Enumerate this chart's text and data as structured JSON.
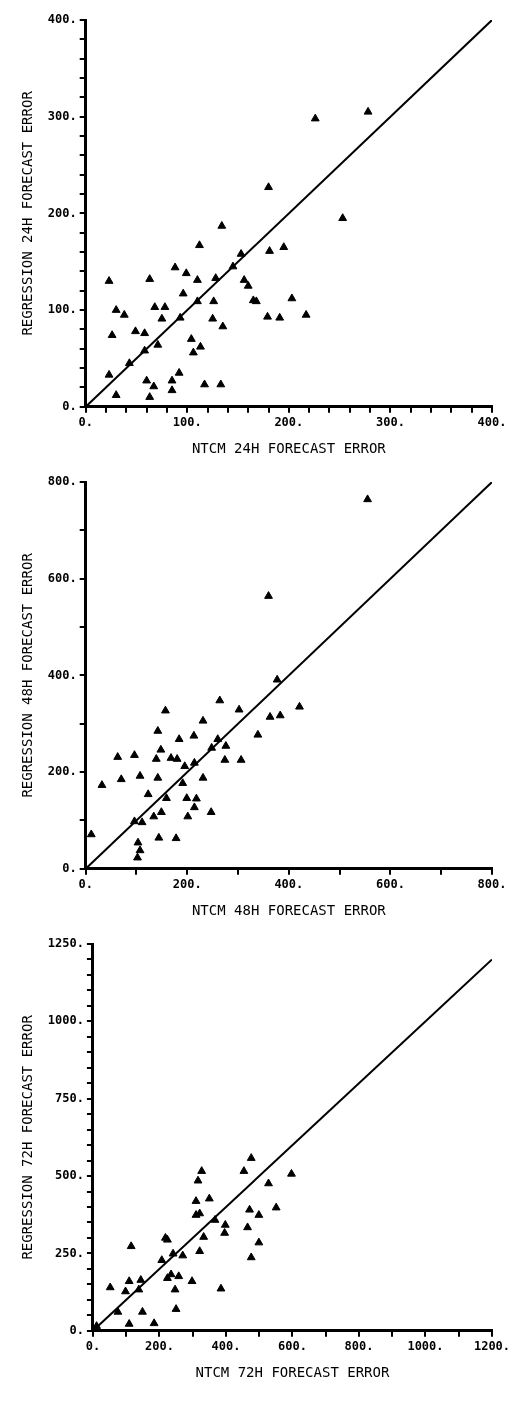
{
  "chart_data": [
    {
      "type": "scatter",
      "xlabel": "NTCM 24H FORECAST ERROR",
      "ylabel": "REGRESSION 24H FORECAST ERROR",
      "marker": "triangle",
      "xlim": [
        0,
        400
      ],
      "ylim": [
        0,
        400
      ],
      "xticks": [
        {
          "value": 0,
          "label": "0."
        },
        {
          "value": 20,
          "label": null
        },
        {
          "value": 40,
          "label": null
        },
        {
          "value": 60,
          "label": null
        },
        {
          "value": 80,
          "label": null
        },
        {
          "value": 100,
          "label": "100."
        },
        {
          "value": 120,
          "label": null
        },
        {
          "value": 140,
          "label": null
        },
        {
          "value": 160,
          "label": null
        },
        {
          "value": 180,
          "label": null
        },
        {
          "value": 200,
          "label": "200."
        },
        {
          "value": 220,
          "label": null
        },
        {
          "value": 240,
          "label": null
        },
        {
          "value": 260,
          "label": null
        },
        {
          "value": 280,
          "label": null
        },
        {
          "value": 300,
          "label": "300."
        },
        {
          "value": 320,
          "label": null
        },
        {
          "value": 340,
          "label": null
        },
        {
          "value": 360,
          "label": null
        },
        {
          "value": 380,
          "label": null
        },
        {
          "value": 400,
          "label": "400."
        }
      ],
      "yticks": [
        {
          "value": 0,
          "label": "0."
        },
        {
          "value": 20,
          "label": null
        },
        {
          "value": 40,
          "label": null
        },
        {
          "value": 60,
          "label": null
        },
        {
          "value": 80,
          "label": null
        },
        {
          "value": 100,
          "label": "100."
        },
        {
          "value": 120,
          "label": null
        },
        {
          "value": 140,
          "label": null
        },
        {
          "value": 160,
          "label": null
        },
        {
          "value": 180,
          "label": null
        },
        {
          "value": 200,
          "label": "200."
        },
        {
          "value": 220,
          "label": null
        },
        {
          "value": 240,
          "label": null
        },
        {
          "value": 260,
          "label": null
        },
        {
          "value": 280,
          "label": null
        },
        {
          "value": 300,
          "label": "300."
        },
        {
          "value": 320,
          "label": null
        },
        {
          "value": 340,
          "label": null
        },
        {
          "value": 360,
          "label": null
        },
        {
          "value": 380,
          "label": null
        },
        {
          "value": 400,
          "label": "400."
        }
      ],
      "series": [
        {
          "type": "scatter",
          "color": "#000000",
          "x": [
            23,
            63,
            88,
            99,
            110,
            112,
            134,
            128,
            145,
            153,
            156,
            160,
            165,
            168,
            181,
            180,
            195,
            203,
            179,
            191,
            217,
            253,
            226,
            278,
            30,
            38,
            26,
            49,
            58,
            68,
            78,
            75,
            93,
            96,
            110,
            126,
            125,
            135,
            71,
            58,
            43,
            104,
            113,
            106,
            23,
            30,
            60,
            67,
            63,
            85,
            85,
            92,
            117,
            133
          ],
          "values": [
            130,
            132,
            144,
            138,
            131,
            167,
            187,
            133,
            145,
            158,
            131,
            125,
            110,
            109,
            161,
            227,
            165,
            112,
            93,
            92,
            95,
            195,
            298,
            305,
            100,
            95,
            74,
            78,
            76,
            103,
            103,
            91,
            92,
            117,
            109,
            109,
            91,
            83,
            64,
            58,
            45,
            70,
            62,
            56,
            33,
            12,
            27,
            21,
            10,
            27,
            17,
            35,
            23,
            23
          ]
        },
        {
          "type": "line",
          "color": "#000000",
          "marker": "none",
          "x": [
            0,
            400
          ],
          "values": [
            0,
            400
          ]
        }
      ]
    },
    {
      "type": "scatter",
      "xlabel": "NTCM 48H FORECAST ERROR",
      "ylabel": "REGRESSION 48H FORECAST ERROR",
      "marker": "triangle",
      "xlim": [
        0,
        800
      ],
      "ylim": [
        0,
        800
      ],
      "xticks": [
        {
          "value": 0,
          "label": "0."
        },
        {
          "value": 100,
          "label": null
        },
        {
          "value": 200,
          "label": "200."
        },
        {
          "value": 300,
          "label": null
        },
        {
          "value": 400,
          "label": "400."
        },
        {
          "value": 500,
          "label": null
        },
        {
          "value": 600,
          "label": "600."
        },
        {
          "value": 700,
          "label": null
        },
        {
          "value": 800,
          "label": "800."
        }
      ],
      "yticks": [
        {
          "value": 0,
          "label": "0."
        },
        {
          "value": 100,
          "label": null
        },
        {
          "value": 200,
          "label": "200."
        },
        {
          "value": 300,
          "label": null
        },
        {
          "value": 400,
          "label": "400."
        },
        {
          "value": 500,
          "label": null
        },
        {
          "value": 600,
          "label": "600."
        },
        {
          "value": 700,
          "label": null
        },
        {
          "value": 800,
          "label": "800."
        }
      ],
      "series": [
        {
          "type": "scatter",
          "color": "#000000",
          "x": [
            555,
            360,
            377,
            11,
            32,
            63,
            96,
            70,
            107,
            142,
            123,
            157,
            142,
            148,
            139,
            168,
            180,
            184,
            195,
            213,
            214,
            231,
            231,
            264,
            260,
            248,
            276,
            274,
            302,
            306,
            339,
            363,
            383,
            421,
            191,
            159,
            199,
            218,
            214,
            201,
            247,
            149,
            134,
            96,
            111,
            144,
            178,
            103,
            107,
            102
          ],
          "values": [
            764,
            564,
            391,
            71,
            173,
            231,
            235,
            185,
            192,
            188,
            154,
            327,
            285,
            246,
            227,
            229,
            227,
            268,
            212,
            275,
            219,
            306,
            188,
            348,
            268,
            250,
            254,
            225,
            329,
            225,
            277,
            314,
            317,
            335,
            177,
            146,
            146,
            145,
            127,
            108,
            117,
            117,
            108,
            98,
            96,
            64,
            63,
            54,
            38,
            23
          ]
        },
        {
          "type": "line",
          "color": "#000000",
          "marker": "none",
          "x": [
            0,
            800
          ],
          "values": [
            0,
            800
          ]
        }
      ]
    },
    {
      "type": "scatter",
      "xlabel": "NTCM 72H FORECAST ERROR",
      "ylabel": "REGRESSION 72H FORECAST ERROR",
      "marker": "triangle",
      "xlim": [
        0,
        1200
      ],
      "ylim": [
        0,
        1250
      ],
      "xticks": [
        {
          "value": 0,
          "label": "0."
        },
        {
          "value": 100,
          "label": null
        },
        {
          "value": 200,
          "label": "200."
        },
        {
          "value": 300,
          "label": null
        },
        {
          "value": 400,
          "label": "400."
        },
        {
          "value": 500,
          "label": null
        },
        {
          "value": 600,
          "label": "600."
        },
        {
          "value": 700,
          "label": null
        },
        {
          "value": 800,
          "label": "800."
        },
        {
          "value": 900,
          "label": null
        },
        {
          "value": 1000,
          "label": "1000."
        },
        {
          "value": 1100,
          "label": null
        },
        {
          "value": 1200,
          "label": "1200."
        }
      ],
      "yticks": [
        {
          "value": 0,
          "label": "0."
        },
        {
          "value": 50,
          "label": null
        },
        {
          "value": 100,
          "label": null
        },
        {
          "value": 150,
          "label": null
        },
        {
          "value": 200,
          "label": null
        },
        {
          "value": 250,
          "label": "250."
        },
        {
          "value": 300,
          "label": null
        },
        {
          "value": 350,
          "label": null
        },
        {
          "value": 400,
          "label": null
        },
        {
          "value": 450,
          "label": null
        },
        {
          "value": 500,
          "label": "500."
        },
        {
          "value": 550,
          "label": null
        },
        {
          "value": 600,
          "label": null
        },
        {
          "value": 650,
          "label": null
        },
        {
          "value": 700,
          "label": null
        },
        {
          "value": 750,
          "label": "750."
        },
        {
          "value": 800,
          "label": null
        },
        {
          "value": 850,
          "label": null
        },
        {
          "value": 900,
          "label": null
        },
        {
          "value": 950,
          "label": null
        },
        {
          "value": 1000,
          "label": "1000."
        },
        {
          "value": 1050,
          "label": null
        },
        {
          "value": 1100,
          "label": null
        },
        {
          "value": 1150,
          "label": null
        },
        {
          "value": 1200,
          "label": null
        },
        {
          "value": 1250,
          "label": "1250."
        }
      ],
      "series": [
        {
          "type": "scatter",
          "color": "#000000",
          "x": [
            476,
            454,
            327,
            316,
            597,
            528,
            350,
            310,
            551,
            471,
            499,
            310,
            321,
            367,
            398,
            465,
            396,
            333,
            218,
            224,
            499,
            115,
            321,
            241,
            270,
            207,
            476,
            235,
            258,
            224,
            298,
            247,
            385,
            109,
            144,
            98,
            52,
            138,
            75,
            149,
            250,
            109,
            184,
            11
          ],
          "values": [
            558,
            516,
            516,
            485,
            507,
            476,
            427,
            419,
            398,
            391,
            374,
            374,
            379,
            358,
            342,
            334,
            316,
            303,
            300,
            294,
            285,
            273,
            257,
            249,
            243,
            228,
            237,
            182,
            176,
            170,
            160,
            133,
            136,
            160,
            164,
            127,
            140,
            133,
            61,
            61,
            70,
            22,
            24,
            15
          ]
        },
        {
          "type": "line",
          "color": "#000000",
          "marker": "none",
          "x": [
            0,
            1200
          ],
          "values": [
            0,
            1200
          ]
        }
      ]
    }
  ]
}
